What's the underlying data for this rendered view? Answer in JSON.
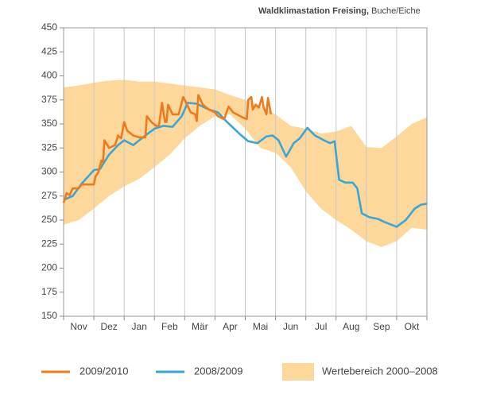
{
  "chart_data": {
    "type": "line",
    "title": "Waldklimastation Freising,",
    "subtitle": "Buche/Eiche",
    "categories": [
      "Nov",
      "Dez",
      "Jan",
      "Feb",
      "Mär",
      "Apr",
      "Mai",
      "Jun",
      "Jul",
      "Aug",
      "Sep",
      "Okt"
    ],
    "xlim": [
      0,
      12
    ],
    "xticks": [
      0,
      1,
      2,
      3,
      4,
      5,
      6,
      7,
      8,
      9,
      10,
      11,
      12
    ],
    "ylim": [
      150,
      450
    ],
    "yticks": [
      150,
      175,
      200,
      225,
      250,
      275,
      300,
      325,
      350,
      375,
      400,
      425,
      450
    ],
    "grid": true,
    "band": {
      "name": "Wertebereich 2000–2008",
      "color": "#fdd89a",
      "x": [
        0,
        0.5,
        1,
        1.5,
        2,
        2.5,
        3,
        3.5,
        4,
        4.5,
        5,
        5.5,
        6,
        6.5,
        7,
        7.5,
        8,
        8.5,
        9,
        9.5,
        10,
        10.5,
        11,
        11.5,
        12
      ],
      "upper": [
        388,
        390,
        393,
        395,
        396,
        394,
        394,
        392,
        390,
        388,
        386,
        380,
        375,
        368,
        360,
        348,
        345,
        340,
        342,
        348,
        326,
        325,
        337,
        350,
        357
      ],
      "lower": [
        245,
        250,
        262,
        275,
        285,
        293,
        305,
        318,
        335,
        348,
        358,
        360,
        345,
        325,
        320,
        305,
        280,
        262,
        250,
        240,
        228,
        222,
        228,
        242,
        240
      ]
    },
    "series": [
      {
        "name": "2009/2010",
        "color": "#ee7a1b",
        "x": [
          0,
          0.1,
          0.2,
          0.3,
          0.5,
          0.6,
          1,
          1.05,
          1.15,
          1.25,
          1.3,
          1.35,
          1.5,
          1.7,
          1.8,
          1.9,
          2,
          2.1,
          2.3,
          2.5,
          2.7,
          2.75,
          2.9,
          3.05,
          3.15,
          3.25,
          3.35,
          3.4,
          3.45,
          3.6,
          3.8,
          3.95,
          4.05,
          4.2,
          4.35,
          4.4,
          4.45,
          4.6,
          4.8,
          5,
          5.1,
          5.3,
          5.45,
          5.6,
          5.9,
          6.05,
          6.1,
          6.2,
          6.25,
          6.35,
          6.45,
          6.55,
          6.6,
          6.7,
          6.75,
          6.85
        ],
        "values": [
          268,
          278,
          276,
          283,
          283,
          287,
          287,
          295,
          300,
          312,
          310,
          333,
          325,
          328,
          338,
          335,
          352,
          343,
          338,
          336,
          336,
          358,
          352,
          348,
          348,
          372,
          352,
          352,
          370,
          360,
          360,
          378,
          372,
          362,
          360,
          353,
          380,
          370,
          365,
          362,
          358,
          355,
          368,
          362,
          357,
          355,
          375,
          378,
          365,
          370,
          367,
          378,
          368,
          360,
          377,
          360
        ]
      },
      {
        "name": "2008/2009",
        "color": "#3aa6d6",
        "x": [
          0,
          0.3,
          0.6,
          1,
          1.2,
          1.5,
          1.8,
          2,
          2.3,
          2.7,
          3,
          3.3,
          3.6,
          3.9,
          4.1,
          4.4,
          4.8,
          5.1,
          5.4,
          5.8,
          6.1,
          6.4,
          6.7,
          6.9,
          7.1,
          7.35,
          7.6,
          7.8,
          8.05,
          8.3,
          8.6,
          8.8,
          8.95,
          9.1,
          9.3,
          9.55,
          9.7,
          9.85,
          10.1,
          10.4,
          10.6,
          11,
          11.3,
          11.6,
          11.8,
          12
        ],
        "values": [
          271,
          275,
          288,
          302,
          303,
          318,
          328,
          333,
          328,
          338,
          345,
          348,
          347,
          358,
          372,
          371,
          365,
          362,
          352,
          340,
          332,
          330,
          337,
          338,
          333,
          316,
          330,
          335,
          346,
          338,
          333,
          330,
          332,
          292,
          289,
          289,
          283,
          257,
          253,
          251,
          248,
          243,
          250,
          262,
          266,
          267
        ]
      }
    ]
  }
}
